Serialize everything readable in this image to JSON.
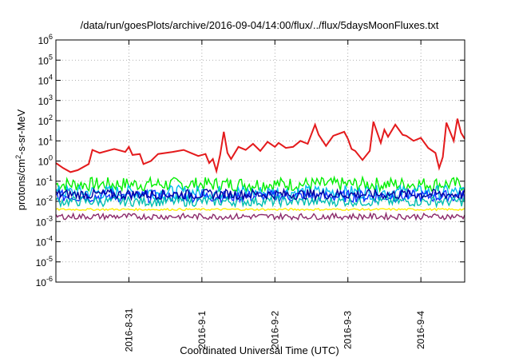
{
  "chart_data": {
    "type": "line",
    "title": "/data/run/goesPlots/archive/2016-09-04/14:00/flux/../flux/5daysMoonFluxes.txt",
    "xlabel": "Coordinated Universal Time (UTC)",
    "ylabel": {
      "prefix": "protons/cm",
      "sup": "2",
      "suffix": "-s-sr-MeV"
    },
    "yscale": "log",
    "ylim_exponents": [
      -6,
      6
    ],
    "y_tick_base": "10",
    "y_ticks": [
      "-6",
      "-5",
      "-4",
      "-3",
      "-2",
      "-1",
      "0",
      "1",
      "2",
      "3",
      "4",
      "5",
      "6"
    ],
    "x_range_days": [
      0,
      5.6
    ],
    "x_ticks": [
      {
        "label": "2016-8-31",
        "day": 1
      },
      {
        "label": "2016-9-1",
        "day": 2
      },
      {
        "label": "2016-9-2",
        "day": 3
      },
      {
        "label": "2016-9-3",
        "day": 4
      },
      {
        "label": "2016-9-4",
        "day": 5
      }
    ],
    "grid": true,
    "x_start": "2016-08-30 00:00",
    "series": [
      {
        "color": "#e41a1c",
        "points": [
          [
            0.0,
            -0.1
          ],
          [
            0.1,
            -0.35
          ],
          [
            0.2,
            -0.55
          ],
          [
            0.3,
            -0.45
          ],
          [
            0.45,
            -0.15
          ],
          [
            0.5,
            0.55
          ],
          [
            0.6,
            0.4
          ],
          [
            0.8,
            0.6
          ],
          [
            0.95,
            0.45
          ],
          [
            1.0,
            0.7
          ],
          [
            1.05,
            0.3
          ],
          [
            1.15,
            0.35
          ],
          [
            1.2,
            -0.15
          ],
          [
            1.3,
            0.0
          ],
          [
            1.4,
            0.35
          ],
          [
            1.6,
            0.45
          ],
          [
            1.75,
            0.55
          ],
          [
            1.85,
            0.4
          ],
          [
            1.95,
            0.25
          ],
          [
            2.05,
            0.35
          ],
          [
            2.1,
            -0.1
          ],
          [
            2.15,
            0.1
          ],
          [
            2.2,
            -0.5
          ],
          [
            2.25,
            0.3
          ],
          [
            2.3,
            1.45
          ],
          [
            2.35,
            0.4
          ],
          [
            2.4,
            0.1
          ],
          [
            2.5,
            0.7
          ],
          [
            2.6,
            0.55
          ],
          [
            2.7,
            0.85
          ],
          [
            2.8,
            0.5
          ],
          [
            2.9,
            0.95
          ],
          [
            3.0,
            0.7
          ],
          [
            3.05,
            0.9
          ],
          [
            3.15,
            0.65
          ],
          [
            3.25,
            0.7
          ],
          [
            3.35,
            1.0
          ],
          [
            3.45,
            0.85
          ],
          [
            3.55,
            1.8
          ],
          [
            3.6,
            1.3
          ],
          [
            3.7,
            0.75
          ],
          [
            3.8,
            1.25
          ],
          [
            3.95,
            1.45
          ],
          [
            4.0,
            1.1
          ],
          [
            4.05,
            0.6
          ],
          [
            4.1,
            0.5
          ],
          [
            4.2,
            0.05
          ],
          [
            4.3,
            0.5
          ],
          [
            4.35,
            1.95
          ],
          [
            4.45,
            0.9
          ],
          [
            4.5,
            1.55
          ],
          [
            4.55,
            1.2
          ],
          [
            4.65,
            1.8
          ],
          [
            4.75,
            1.3
          ],
          [
            4.8,
            1.25
          ],
          [
            4.9,
            1.0
          ],
          [
            5.0,
            1.15
          ],
          [
            5.1,
            0.65
          ],
          [
            5.2,
            0.4
          ],
          [
            5.25,
            -0.35
          ],
          [
            5.3,
            0.2
          ],
          [
            5.35,
            1.9
          ],
          [
            5.45,
            1.0
          ],
          [
            5.5,
            2.1
          ],
          [
            5.55,
            1.4
          ],
          [
            5.6,
            1.1
          ]
        ]
      }
    ],
    "band_series": [
      {
        "color": "#00ee00",
        "base": -1.15,
        "amp": 0.35
      },
      {
        "color": "#00bbee",
        "base": -1.55,
        "amp": 0.35
      },
      {
        "color": "#1030ff",
        "base": -1.75,
        "amp": 0.3
      },
      {
        "color": "#00c0b0",
        "base": -2.0,
        "amp": 0.25
      },
      {
        "color": "#0000a0",
        "base": -1.65,
        "amp": 0.25
      },
      {
        "color": "#ffee00",
        "base": -2.4,
        "amp": 0.05
      },
      {
        "color": "#8b2a6b",
        "base": -2.75,
        "amp": 0.15
      }
    ]
  }
}
